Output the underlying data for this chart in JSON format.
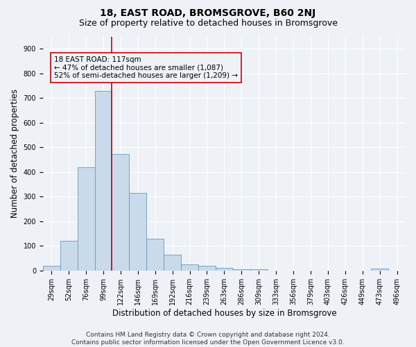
{
  "title": "18, EAST ROAD, BROMSGROVE, B60 2NJ",
  "subtitle": "Size of property relative to detached houses in Bromsgrove",
  "xlabel": "Distribution of detached houses by size in Bromsgrove",
  "ylabel": "Number of detached properties",
  "bar_color": "#c9daea",
  "bar_edge_color": "#6699bb",
  "categories": [
    "29sqm",
    "52sqm",
    "76sqm",
    "99sqm",
    "122sqm",
    "146sqm",
    "169sqm",
    "192sqm",
    "216sqm",
    "239sqm",
    "263sqm",
    "286sqm",
    "309sqm",
    "333sqm",
    "356sqm",
    "379sqm",
    "403sqm",
    "426sqm",
    "449sqm",
    "473sqm",
    "496sqm"
  ],
  "values": [
    18,
    122,
    418,
    730,
    472,
    315,
    128,
    65,
    25,
    20,
    10,
    5,
    5,
    0,
    0,
    0,
    0,
    0,
    0,
    8,
    0
  ],
  "ylim": [
    0,
    950
  ],
  "yticks": [
    0,
    100,
    200,
    300,
    400,
    500,
    600,
    700,
    800,
    900
  ],
  "vline_x": 3.5,
  "vline_color": "#cc0000",
  "annotation_line1": "18 EAST ROAD: 117sqm",
  "annotation_line2": "← 47% of detached houses are smaller (1,087)",
  "annotation_line3": "52% of semi-detached houses are larger (1,209) →",
  "footer_line1": "Contains HM Land Registry data © Crown copyright and database right 2024.",
  "footer_line2": "Contains public sector information licensed under the Open Government Licence v3.0.",
  "bg_color": "#eef2f7",
  "grid_color": "#ffffff",
  "title_fontsize": 10,
  "subtitle_fontsize": 9,
  "axis_label_fontsize": 8.5,
  "tick_fontsize": 7,
  "annotation_fontsize": 7.5,
  "footer_fontsize": 6.5
}
